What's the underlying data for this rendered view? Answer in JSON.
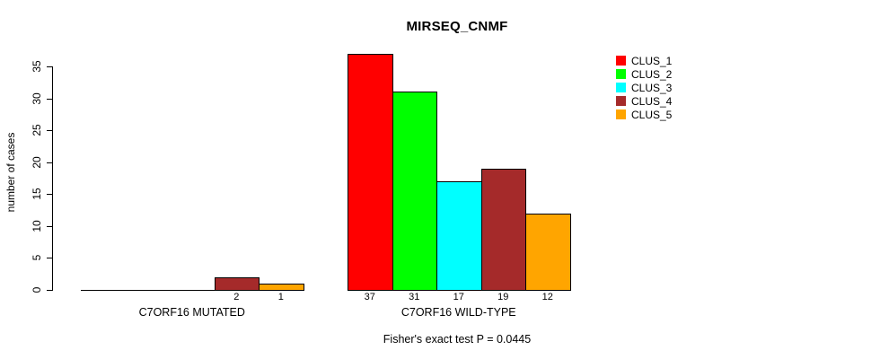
{
  "chart_data": {
    "type": "bar",
    "title": "MIRSEQ_CNMF",
    "ylabel": "number of cases",
    "xlabel": "",
    "ylim": [
      0,
      37
    ],
    "yticks": [
      0,
      5,
      10,
      15,
      20,
      25,
      30,
      35
    ],
    "grid": false,
    "legend_position": "top-right",
    "series_labels": [
      "CLUS_1",
      "CLUS_2",
      "CLUS_3",
      "CLUS_4",
      "CLUS_5"
    ],
    "series_colors": [
      "#ff0000",
      "#00ff00",
      "#00ffff",
      "#a52a2a",
      "#ffa500"
    ],
    "groups": [
      {
        "label": "C7ORF16 MUTATED",
        "values": [
          0,
          0,
          0,
          2,
          1
        ]
      },
      {
        "label": "C7ORF16 WILD-TYPE",
        "values": [
          37,
          31,
          17,
          19,
          12
        ]
      }
    ],
    "bar_value_labels": {
      "show_zero": false
    },
    "annotation": "Fisher's exact test P = 0.0445"
  }
}
